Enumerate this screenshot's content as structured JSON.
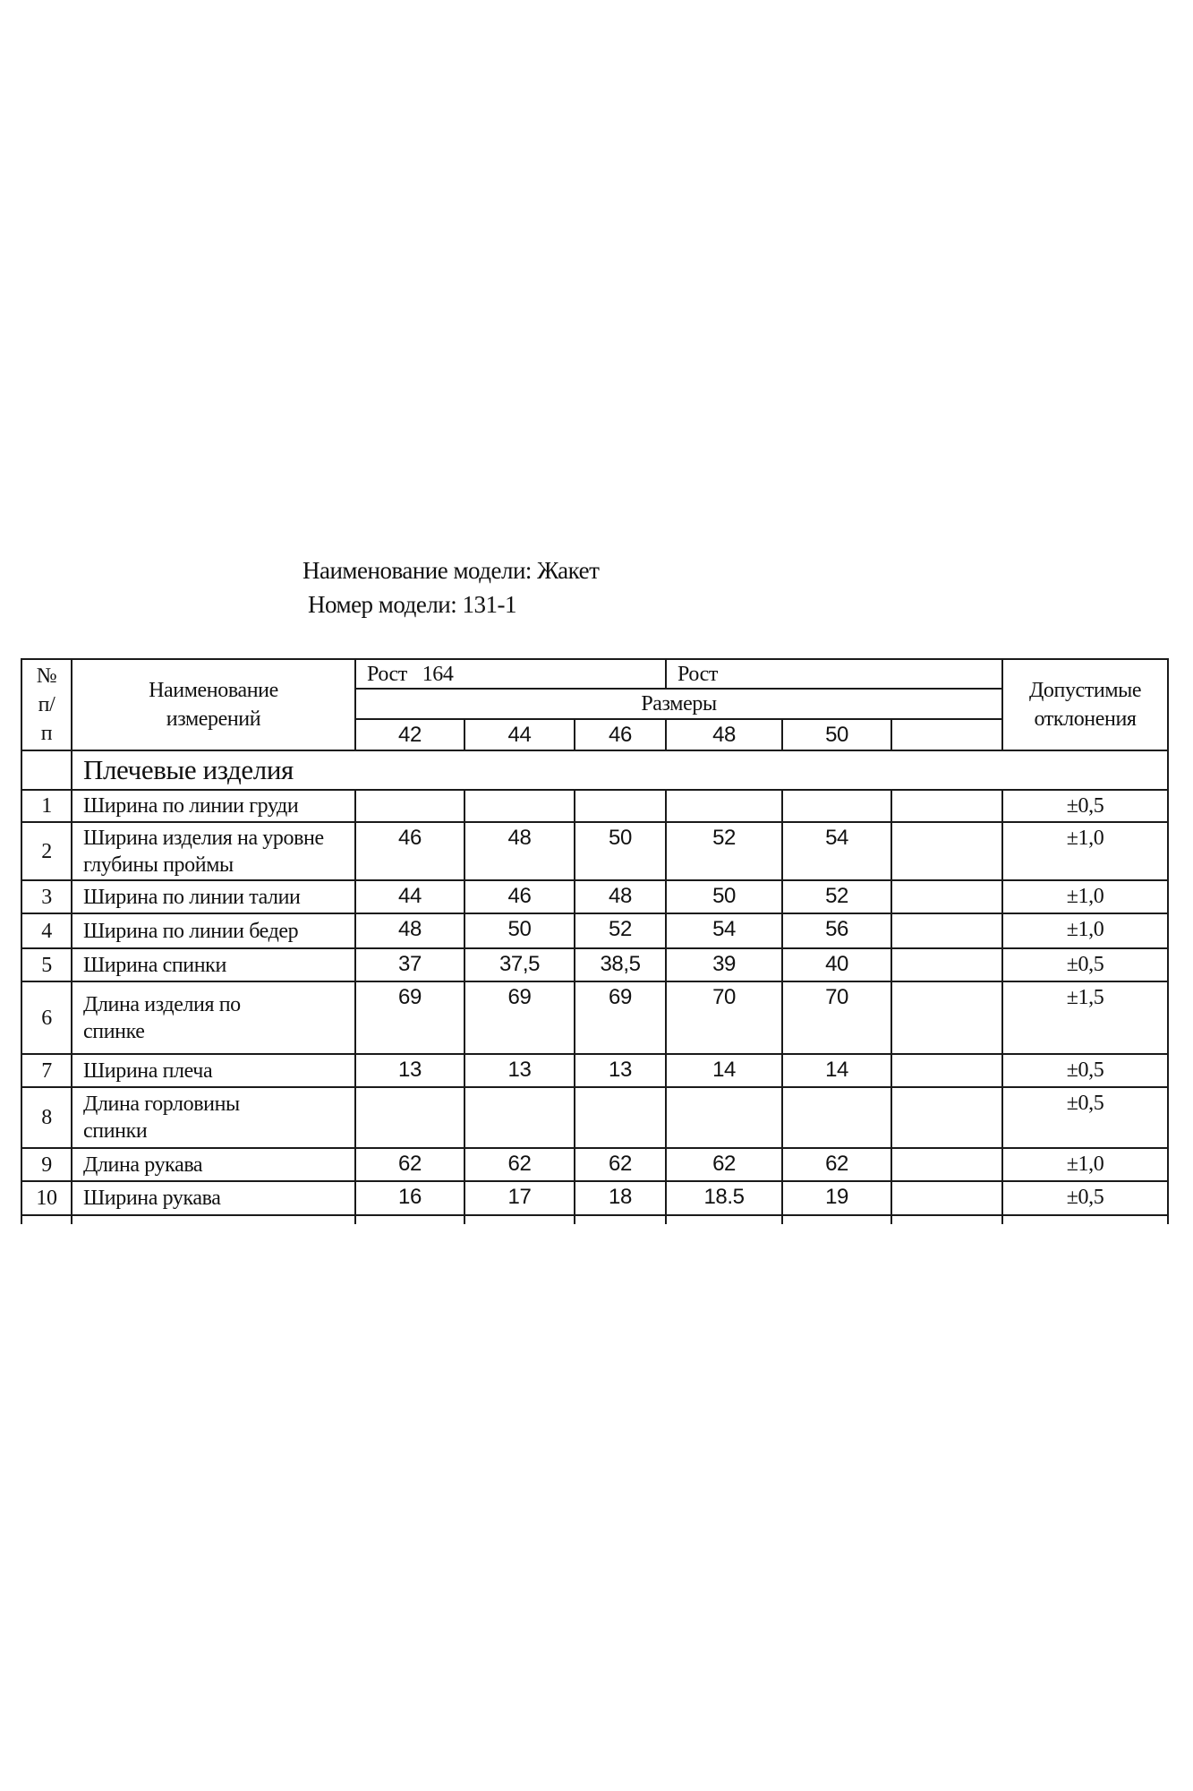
{
  "header": {
    "model_name": "Наименование модели: Жакет",
    "model_number": "Номер модели: 131-1"
  },
  "table": {
    "col_no": "№ п/ п",
    "col_name": "Наименование измерений",
    "height_1": "Рост   164",
    "height_2": "Рост",
    "sizes_label": "Размеры",
    "sizes": [
      "42",
      "44",
      "46",
      "48",
      "50",
      ""
    ],
    "col_tolerance": "Допустимые отклонения",
    "section": "Плечевые изделия",
    "rows": [
      {
        "no": "1",
        "name": "Ширина по линии груди",
        "values": [
          "",
          "",
          "",
          "",
          "",
          ""
        ],
        "tol": "±0,5"
      },
      {
        "no": "2",
        "name": "Ширина изделия на уровне глубины проймы",
        "values": [
          "46",
          "48",
          "50",
          "52",
          "54",
          ""
        ],
        "tol": "±1,0"
      },
      {
        "no": "3",
        "name": "Ширина по линии талии",
        "values": [
          "44",
          "46",
          "48",
          "50",
          "52",
          ""
        ],
        "tol": "±1,0"
      },
      {
        "no": "4",
        "name": "Ширина по линии бедер",
        "values": [
          "48",
          "50",
          "52",
          "54",
          "56",
          ""
        ],
        "tol": "±1,0"
      },
      {
        "no": "5",
        "name": "Ширина спинки",
        "values": [
          "37",
          "37,5",
          "38,5",
          "39",
          "40",
          ""
        ],
        "tol": "±0,5"
      },
      {
        "no": "6",
        "name": "Длина изделия по спинке",
        "values": [
          "69",
          "69",
          "69",
          "70",
          "70",
          ""
        ],
        "tol": "±1,5"
      },
      {
        "no": "7",
        "name": "Ширина плеча",
        "values": [
          "13",
          "13",
          "13",
          "14",
          "14",
          ""
        ],
        "tol": "±0,5"
      },
      {
        "no": "8",
        "name": "Длина горловины спинки",
        "values": [
          "",
          "",
          "",
          "",
          "",
          ""
        ],
        "tol": "±0,5"
      },
      {
        "no": "9",
        "name": "Длина рукава",
        "values": [
          "62",
          "62",
          "62",
          "62",
          "62",
          ""
        ],
        "tol": "±1,0"
      },
      {
        "no": "10",
        "name": "Ширина рукава",
        "values": [
          "16",
          "17",
          "18",
          "18.5",
          "19",
          ""
        ],
        "tol": "±0,5"
      }
    ]
  }
}
